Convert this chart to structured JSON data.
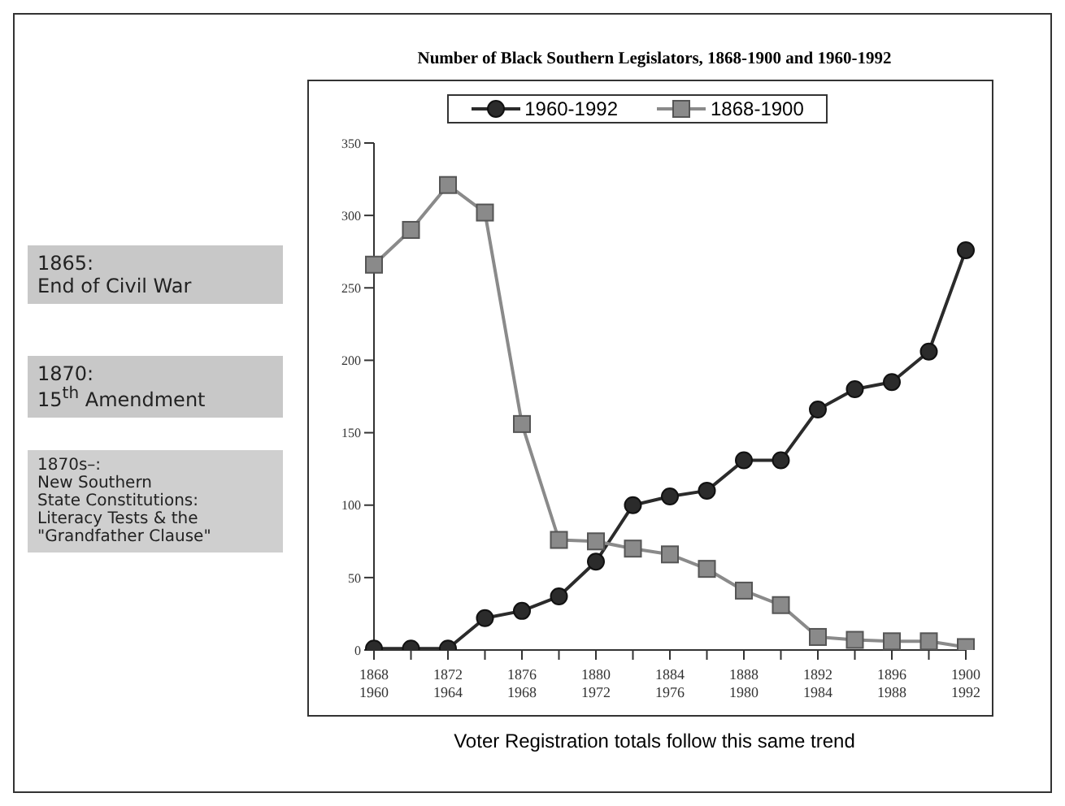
{
  "chart_data": {
    "type": "line",
    "title": "Number of Black Southern Legislators, 1868-1900 and 1960-1992",
    "categories": [
      "1868\n1960",
      null,
      "1872\n1964",
      null,
      "1876\n1968",
      null,
      "1880\n1972",
      null,
      "1884\n1976",
      null,
      "1888\n1980",
      null,
      "1892\n1984",
      null,
      "1896\n1988",
      null,
      "1900\n1992"
    ],
    "series": [
      {
        "name": "1960-1992",
        "color": "#2b2b2b",
        "marker": "circle",
        "values": [
          1,
          1,
          1,
          22,
          27,
          37,
          61,
          100,
          106,
          110,
          131,
          131,
          166,
          180,
          185,
          206,
          276
        ]
      },
      {
        "name": "1868-1900",
        "color": "#8a8a8a",
        "marker": "square",
        "values": [
          266,
          290,
          321,
          302,
          156,
          76,
          75,
          70,
          66,
          56,
          41,
          31,
          9,
          7,
          6,
          6,
          2
        ]
      }
    ],
    "ylim": [
      0,
      350
    ],
    "yticks": [
      0,
      50,
      100,
      150,
      200,
      250,
      300,
      350
    ],
    "grid": false,
    "legend": "top",
    "line_style": "solid",
    "annotations": [
      "1865:\nEnd of Civil War",
      "1870:\n15$^{th}$ Amendment",
      "1870s–:\nNew Southern\nState Constitutions:\nLiteracy Tests & the\n\"Grandfather Clause\"",
      "Voter Registration totals follow this same trend"
    ]
  }
}
